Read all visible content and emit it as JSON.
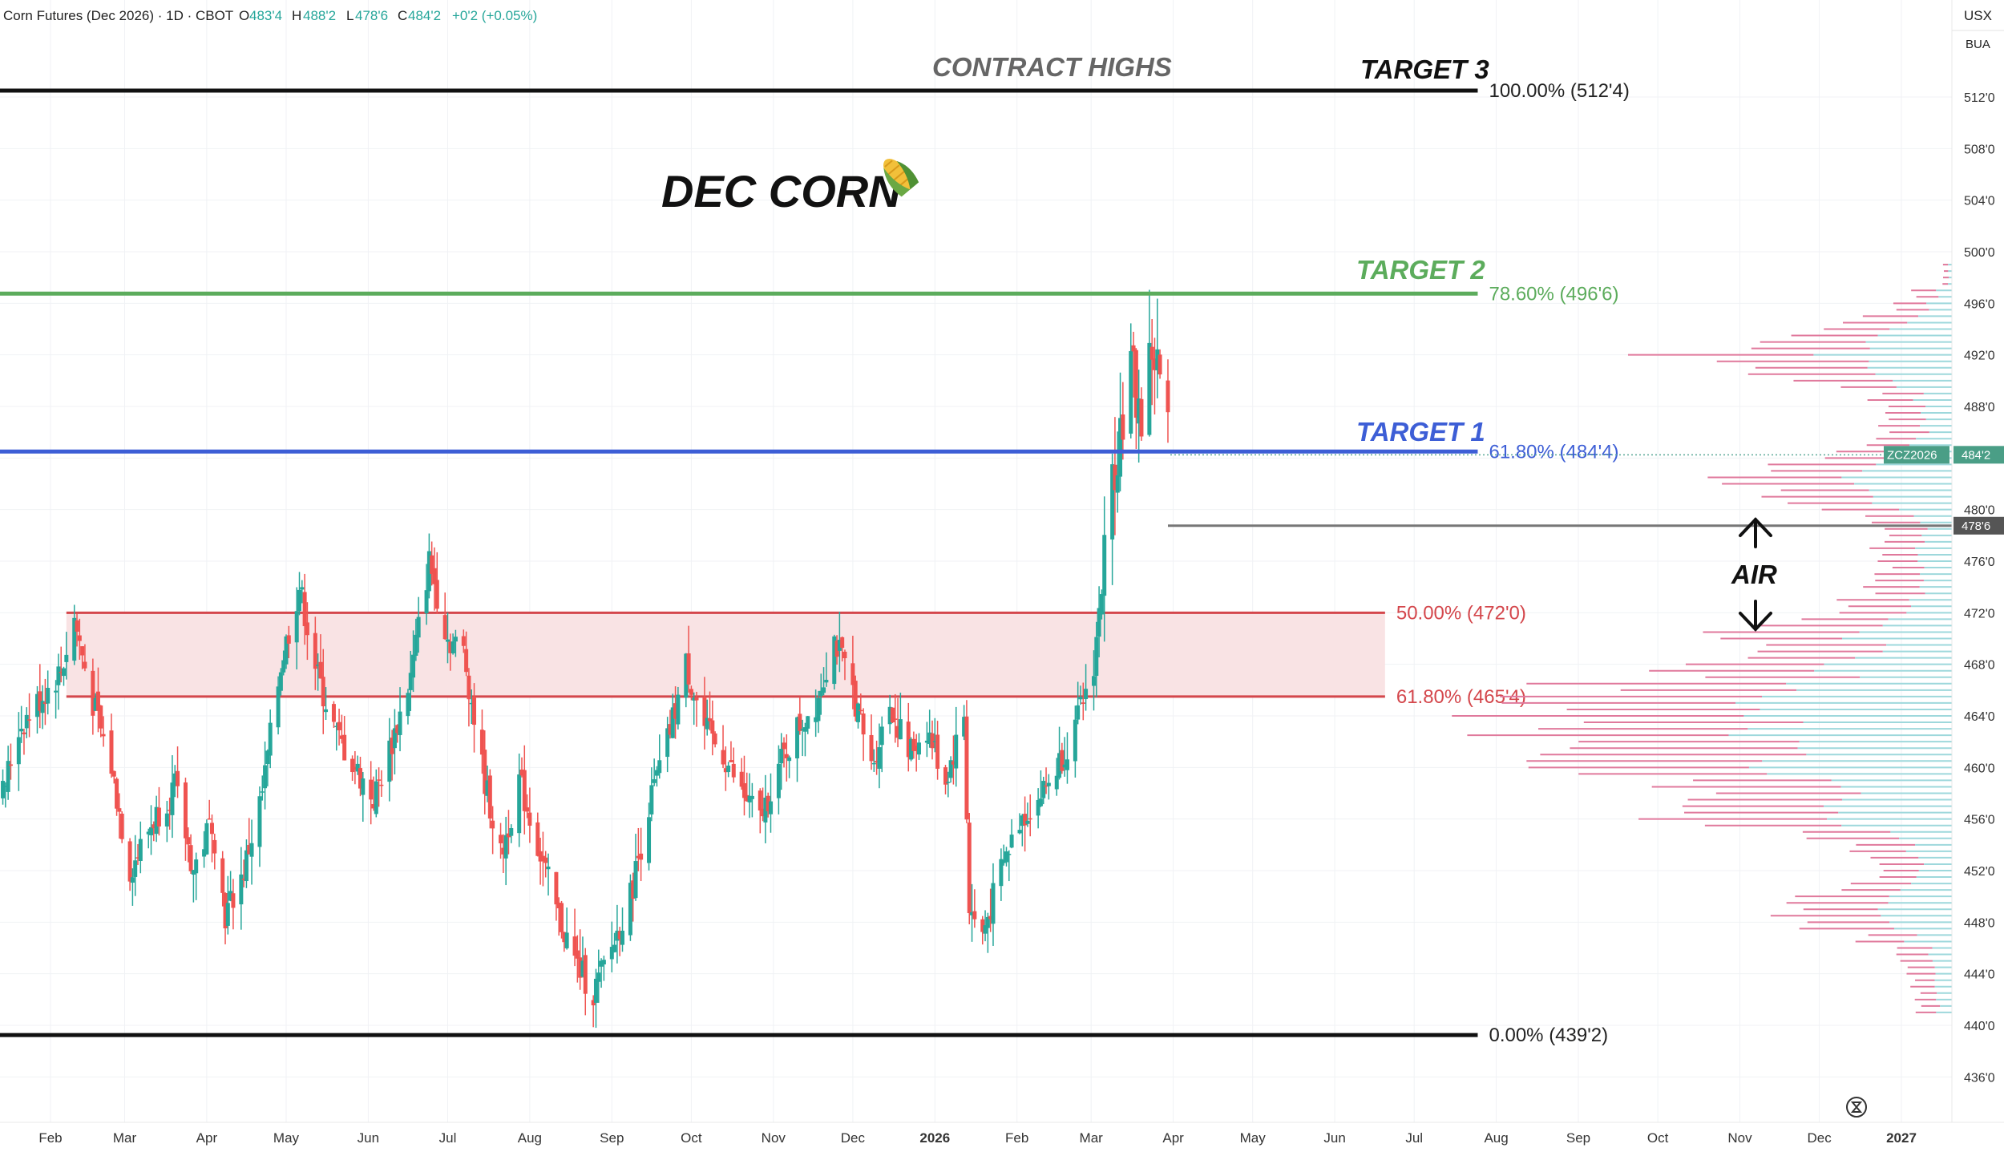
{
  "header": {
    "symbol": "Corn Futures (Dec 2026) · 1D · CBOT",
    "o_label": "O",
    "o_value": "483'4",
    "h_label": "H",
    "h_value": "488'2",
    "l_label": "L",
    "l_value": "478'6",
    "c_label": "C",
    "c_value": "484'2",
    "change": "+0'2 (+0.05%)"
  },
  "corner": {
    "currency": "USX",
    "unit": "BUA"
  },
  "annotations": {
    "title": "DEC CORN",
    "contract_highs": "CONTRACT HIGHS",
    "target3": "TARGET 3",
    "target2": "TARGET 2",
    "target1": "TARGET 1",
    "air": "AIR"
  },
  "colors": {
    "up": "#26a69a",
    "down": "#ef5350",
    "target2": "#5cac5c",
    "target1": "#3d5ed6",
    "zone_line": "#d4474c",
    "zone_fill": "#f9e3e4",
    "vp_up": "#9ed8dc",
    "vp_down": "#e0799c",
    "current_price_tag": "#4a9e86",
    "low_price_tag": "#555555"
  },
  "chart_data": {
    "type": "candlestick",
    "symbol": "ZCZ2026",
    "y_axis": {
      "range": [
        434.5,
        518
      ],
      "ticks": [
        "436'0",
        "440'0",
        "444'0",
        "448'0",
        "452'0",
        "456'0",
        "460'0",
        "464'0",
        "468'0",
        "472'0",
        "476'0",
        "480'0",
        "484'0",
        "488'0",
        "492'0",
        "496'0",
        "500'0",
        "504'0",
        "508'0",
        "512'0"
      ],
      "tick_values": [
        436,
        440,
        444,
        448,
        452,
        456,
        460,
        464,
        468,
        472,
        476,
        480,
        484,
        488,
        492,
        496,
        500,
        504,
        508,
        512
      ]
    },
    "x_axis": {
      "labels": [
        "Feb",
        "Mar",
        "Apr",
        "May",
        "Jun",
        "Jul",
        "Aug",
        "Sep",
        "Oct",
        "Nov",
        "Dec",
        "2026",
        "Feb",
        "Mar",
        "Apr",
        "May",
        "Jun",
        "Jul",
        "Aug",
        "Sep",
        "Oct",
        "Nov",
        "Dec",
        "2027"
      ],
      "label_dates": [
        "2025-02-01",
        "2025-03-01",
        "2025-04-01",
        "2025-05-01",
        "2025-06-01",
        "2025-07-01",
        "2025-08-01",
        "2025-09-01",
        "2025-10-01",
        "2025-11-01",
        "2025-12-01",
        "2026-01-01",
        "2026-02-01",
        "2026-03-01",
        "2026-04-01",
        "2026-05-01",
        "2026-06-01",
        "2026-07-01",
        "2026-08-01",
        "2026-09-01",
        "2026-10-01",
        "2026-11-01",
        "2026-12-01",
        "2027-01-01"
      ],
      "range": [
        "2025-01-14",
        "2027-01-28"
      ]
    },
    "fib_levels": [
      {
        "label": "100.00% (512'4)",
        "value": 512.5,
        "end": "2026-07-25",
        "color": "#111111"
      },
      {
        "label": "78.60% (496'6)",
        "value": 496.75,
        "end": "2026-07-25",
        "color": "#5cac5c"
      },
      {
        "label": "61.80% (484'4)",
        "value": 484.5,
        "end": "2026-07-25",
        "color": "#3d5ed6"
      },
      {
        "label": "0.00% (439'2)",
        "value": 439.25,
        "end": "2026-07-25",
        "color": "#111111"
      }
    ],
    "zone": {
      "upper": {
        "label": "50.00% (472'0)",
        "value": 472.0
      },
      "lower": {
        "label": "61.80% (465'4)",
        "value": 465.5
      },
      "start": "2025-02-07",
      "end": "2026-06-20"
    },
    "last_price": {
      "label": "ZCZ2026",
      "value": 484.25,
      "display": "484'2"
    },
    "low_line": {
      "value": 478.75,
      "display": "478'6",
      "start": "2026-03-30"
    },
    "candles_waypoints": [
      [
        "2025-01-14",
        458.0
      ],
      [
        "2025-01-20",
        463.0
      ],
      [
        "2025-01-27",
        465.0
      ],
      [
        "2025-02-05",
        467.5
      ],
      [
        "2025-02-10",
        471.5
      ],
      [
        "2025-02-17",
        465.0
      ],
      [
        "2025-02-24",
        460.0
      ],
      [
        "2025-03-03",
        452.0
      ],
      [
        "2025-03-12",
        456.0
      ],
      [
        "2025-03-20",
        458.5
      ],
      [
        "2025-03-27",
        452.0
      ],
      [
        "2025-04-03",
        456.0
      ],
      [
        "2025-04-08",
        448.5
      ],
      [
        "2025-04-15",
        452.0
      ],
      [
        "2025-04-22",
        458.0
      ],
      [
        "2025-04-29",
        468.0
      ],
      [
        "2025-05-06",
        474.0
      ],
      [
        "2025-05-13",
        467.0
      ],
      [
        "2025-05-20",
        462.5
      ],
      [
        "2025-05-27",
        460.0
      ],
      [
        "2025-06-03",
        457.5
      ],
      [
        "2025-06-10",
        462.0
      ],
      [
        "2025-06-17",
        467.0
      ],
      [
        "2025-06-24",
        476.0
      ],
      [
        "2025-07-01",
        470.0
      ],
      [
        "2025-07-07",
        469.0
      ],
      [
        "2025-07-14",
        460.0
      ],
      [
        "2025-07-21",
        453.0
      ],
      [
        "2025-07-28",
        459.0
      ],
      [
        "2025-08-04",
        454.0
      ],
      [
        "2025-08-11",
        449.0
      ],
      [
        "2025-08-18",
        445.0
      ],
      [
        "2025-08-25",
        442.5
      ],
      [
        "2025-09-01",
        446.0
      ],
      [
        "2025-09-08",
        450.0
      ],
      [
        "2025-09-15",
        457.0
      ],
      [
        "2025-09-22",
        462.0
      ],
      [
        "2025-09-29",
        468.0
      ],
      [
        "2025-10-06",
        463.0
      ],
      [
        "2025-10-13",
        461.0
      ],
      [
        "2025-10-20",
        458.0
      ],
      [
        "2025-10-27",
        456.0
      ],
      [
        "2025-11-03",
        460.0
      ],
      [
        "2025-11-10",
        463.0
      ],
      [
        "2025-11-17",
        465.0
      ],
      [
        "2025-11-24",
        470.0
      ],
      [
        "2025-12-01",
        466.0
      ],
      [
        "2025-12-08",
        460.0
      ],
      [
        "2025-12-15",
        465.0
      ],
      [
        "2025-12-22",
        461.0
      ],
      [
        "2025-12-29",
        463.0
      ],
      [
        "2026-01-05",
        459.0
      ],
      [
        "2026-01-12",
        464.0
      ],
      [
        "2026-01-14",
        449.0
      ],
      [
        "2026-01-19",
        447.0
      ],
      [
        "2026-01-26",
        452.0
      ],
      [
        "2026-02-02",
        456.0
      ],
      [
        "2026-02-09",
        457.5
      ],
      [
        "2026-02-16",
        460.0
      ],
      [
        "2026-02-23",
        463.0
      ],
      [
        "2026-03-02",
        468.0
      ],
      [
        "2026-03-06",
        476.0
      ],
      [
        "2026-03-10",
        484.0
      ],
      [
        "2026-03-16",
        491.0
      ],
      [
        "2026-03-20",
        487.0
      ],
      [
        "2026-03-24",
        492.5
      ],
      [
        "2026-03-27",
        490.0
      ],
      [
        "2026-03-31",
        484.25
      ]
    ],
    "volume_profile": {
      "price_step": 0.5,
      "peaks": [
        {
          "price": 463.5,
          "width": 380
        },
        {
          "price": 460.5,
          "width": 330
        },
        {
          "price": 466.0,
          "width": 300
        },
        {
          "price": 456.5,
          "width": 260
        },
        {
          "price": 492.0,
          "width": 280
        },
        {
          "price": 470.0,
          "width": 170
        },
        {
          "price": 482.0,
          "width": 190
        },
        {
          "price": 449.0,
          "width": 160
        }
      ]
    }
  }
}
